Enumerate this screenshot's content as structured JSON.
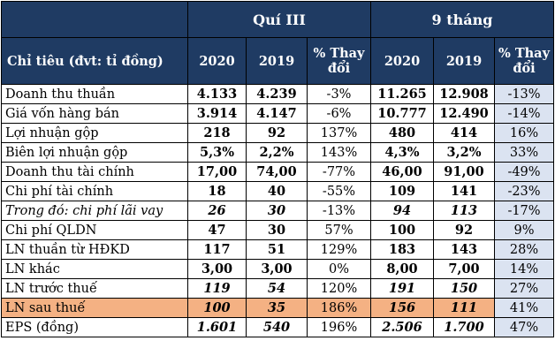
{
  "header": {
    "group_q3": "Quí III",
    "group_9m": "9 tháng",
    "label_col": "Chỉ tiêu (đvt: tỉ đồng)",
    "year_a": "2020",
    "year_b": "2019",
    "pct_line1": "% Thay",
    "pct_line2": "đổi"
  },
  "rows": [
    {
      "label": "Doanh thu thuần",
      "q20": "4.133",
      "q19": "4.239",
      "qp": "-3%",
      "m20": "11.265",
      "m19": "12.908",
      "mp": "-13%"
    },
    {
      "label": "Giá vốn hàng bán",
      "q20": "3.914",
      "q19": "4.147",
      "qp": "-6%",
      "m20": "10.777",
      "m19": "12.490",
      "mp": "-14%"
    },
    {
      "label": "Lợi nhuận gộp",
      "q20": "218",
      "q19": "92",
      "qp": "137%",
      "m20": "480",
      "m19": "414",
      "mp": "16%"
    },
    {
      "label": "Biên lợi nhuận gộp",
      "q20": "5,3%",
      "q19": "2,2%",
      "qp": "143%",
      "m20": "4,3%",
      "m19": "3,2%",
      "mp": "33%"
    },
    {
      "label": "Doanh thu tài chính",
      "q20": "17,00",
      "q19": "74,00",
      "qp": "-77%",
      "m20": "46,00",
      "m19": "91,00",
      "mp": "-49%"
    },
    {
      "label": "Chi phí tài chính",
      "q20": "18",
      "q19": "40",
      "qp": "-55%",
      "m20": "109",
      "m19": "141",
      "mp": "-23%"
    },
    {
      "label": "Trong đó: chi phí lãi vay",
      "q20": "26",
      "q19": "30",
      "qp": "-13%",
      "m20": "94",
      "m19": "113",
      "mp": "-17%"
    },
    {
      "label": "Chi phí QLDN",
      "q20": "47",
      "q19": "30",
      "qp": "57%",
      "m20": "100",
      "m19": "92",
      "mp": "9%"
    },
    {
      "label": "LN thuần từ HĐKD",
      "q20": "117",
      "q19": "51",
      "qp": "129%",
      "m20": "183",
      "m19": "143",
      "mp": "28%"
    },
    {
      "label": "LN khác",
      "q20": "3,00",
      "q19": "3,00",
      "qp": "0%",
      "m20": "8,00",
      "m19": "7,00",
      "mp": "14%"
    },
    {
      "label": "LN trước thuế",
      "q20": "119",
      "q19": "54",
      "qp": "120%",
      "m20": "191",
      "m19": "150",
      "mp": "27%"
    },
    {
      "label": "LN sau thuế",
      "q20": "100",
      "q19": "35",
      "qp": "186%",
      "m20": "156",
      "m19": "111",
      "mp": "41%"
    },
    {
      "label": "EPS (đồng)",
      "q20": "1.601",
      "q19": "540",
      "qp": "196%",
      "m20": "2.506",
      "m19": "1.700",
      "mp": "47%"
    }
  ],
  "colors": {
    "header_bg": "#1f3b63",
    "highlight_row": "#f4b183",
    "pct_9m_bg": "#dbe3f1"
  }
}
